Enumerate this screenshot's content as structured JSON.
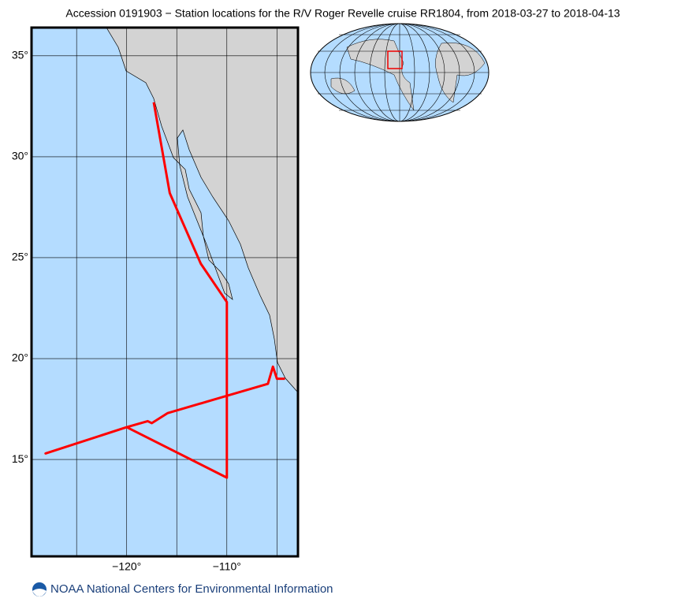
{
  "chart_data": {
    "type": "line",
    "title": "Accession 0191903 − Station locations for the R/V Roger Revelle cruise RR1804, from 2018-03-27 to 2018-04-13",
    "footer": "NOAA National Centers for Environmental Information",
    "xlim": [
      -129.5,
      -102.9
    ],
    "ylim": [
      10.2,
      36.4
    ],
    "xticks": [
      {
        "value": -120,
        "label": "−120°"
      },
      {
        "value": -110,
        "label": "−110°"
      }
    ],
    "xgrid": [
      -125,
      -115,
      -105
    ],
    "yticks": [
      {
        "value": 15,
        "label": "15°"
      },
      {
        "value": 20,
        "label": "20°"
      },
      {
        "value": 25,
        "label": "25°"
      },
      {
        "value": 30,
        "label": "30°"
      },
      {
        "value": 35,
        "label": "35°"
      }
    ],
    "grid": true,
    "color": "#ff0000",
    "x": [
      -117.3,
      -115.7,
      -112.6,
      -110.0,
      -110.0,
      -120.0,
      -128.1,
      -120.0,
      -117.9,
      -117.5,
      -115.9,
      -105.9,
      -105.4,
      -105.0,
      -104.2
    ],
    "values": [
      32.7,
      28.2,
      24.7,
      22.8,
      14.1,
      16.6,
      15.3,
      16.6,
      16.9,
      16.8,
      17.3,
      18.75,
      19.6,
      19.0,
      19.0
    ]
  }
}
